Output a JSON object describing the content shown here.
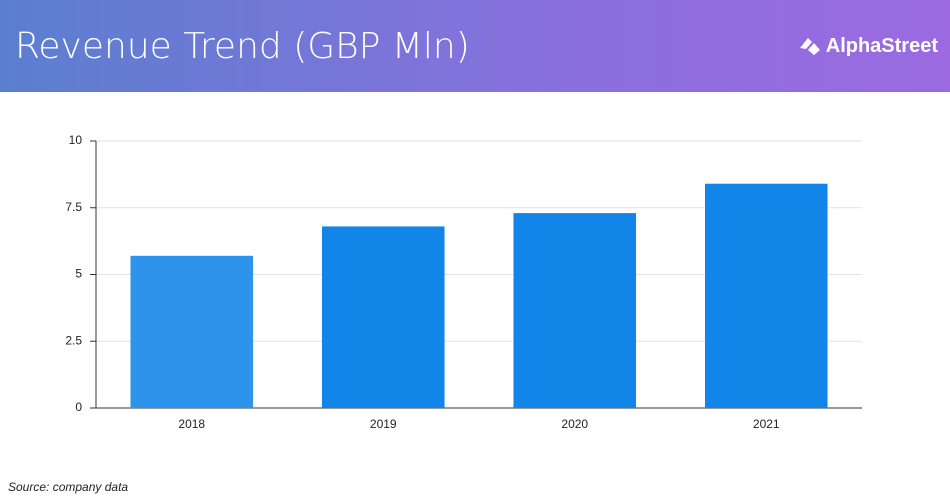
{
  "brand": "AlphaStreet",
  "source": "Source: company data",
  "chart_data": {
    "type": "bar",
    "title": "Revenue Trend (GBP Mln)",
    "categories": [
      "2018",
      "2019",
      "2020",
      "2021"
    ],
    "values": [
      5.7,
      6.8,
      7.3,
      8.4
    ],
    "colors": [
      "#2e93ea",
      "#1185e8",
      "#1185e8",
      "#1185e8"
    ],
    "ylim": [
      0,
      10
    ],
    "yticks": [
      0,
      2.5,
      5,
      7.5,
      10
    ],
    "grid": true
  }
}
